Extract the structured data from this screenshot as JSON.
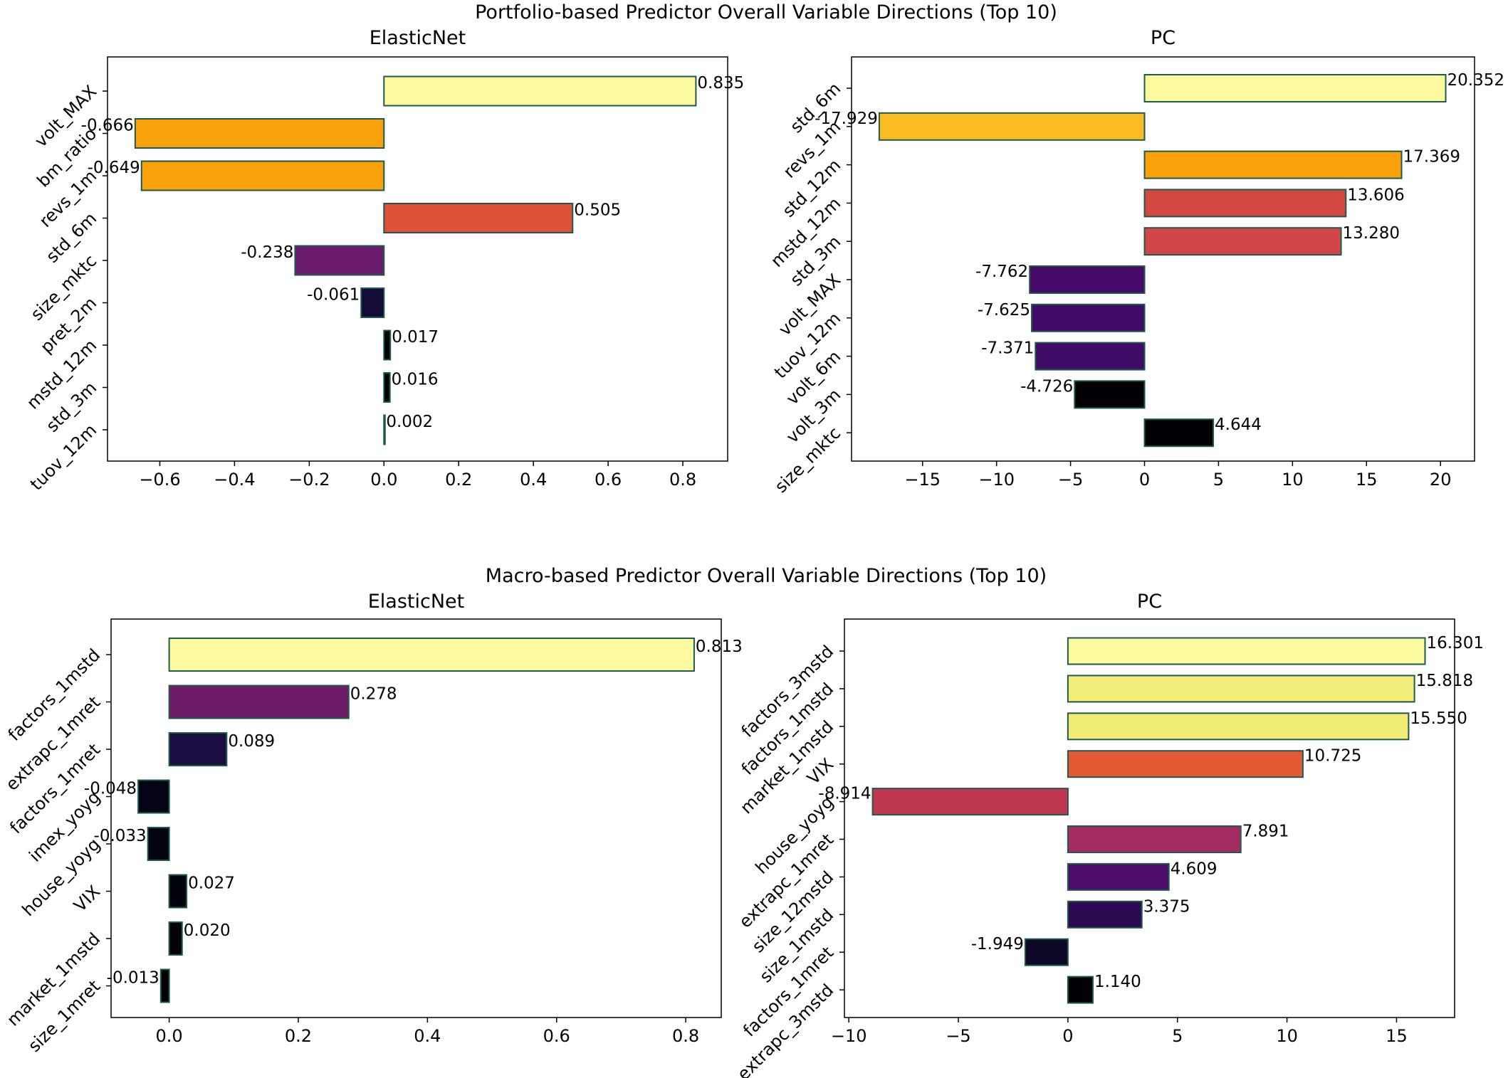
{
  "figure": {
    "suptitles": [
      "Portfolio-based Predictor Overall Variable Directions (Top 10)",
      "Macro-based Predictor Overall Variable Directions (Top 10)"
    ]
  },
  "chart_data": [
    {
      "type": "bar",
      "orientation": "horizontal",
      "group": "Portfolio-based Predictor Overall Variable Directions (Top 10)",
      "title": "ElasticNet",
      "categories": [
        "volt_MAX",
        "bm_ratio",
        "revs_1m",
        "std_6m",
        "size_mktc",
        "pret_2m",
        "mstd_12m",
        "std_3m",
        "tuov_12m"
      ],
      "values": [
        0.835,
        -0.666,
        -0.649,
        0.505,
        -0.238,
        -0.061,
        0.017,
        0.016,
        0.002
      ],
      "value_labels": [
        "0.835",
        "-0.666",
        "-0.649",
        "0.505",
        "-0.238",
        "-0.061",
        "0.017",
        "0.016",
        "0.002"
      ],
      "colors": [
        "#fbfa9e",
        "#f9a10b",
        "#f9a10b",
        "#dd5138",
        "#6c1c6e",
        "#150b38",
        "#010005",
        "#010005",
        "#000004"
      ],
      "xlim": [
        -0.74,
        0.92
      ],
      "xticks": [
        -0.6,
        -0.4,
        -0.2,
        0.0,
        0.2,
        0.4,
        0.6,
        0.8
      ],
      "xtick_labels": [
        "−0.6",
        "−0.4",
        "−0.2",
        "0.0",
        "0.2",
        "0.4",
        "0.6",
        "0.8"
      ]
    },
    {
      "type": "bar",
      "orientation": "horizontal",
      "group": "Portfolio-based Predictor Overall Variable Directions (Top 10)",
      "title": "PC",
      "categories": [
        "std_6m",
        "revs_1m",
        "std_12m",
        "mstd_12m",
        "std_3m",
        "volt_MAX",
        "tuov_12m",
        "volt_6m",
        "volt_3m",
        "size_mktc"
      ],
      "values": [
        20.352,
        -17.929,
        17.369,
        13.606,
        13.28,
        -7.762,
        -7.625,
        -7.371,
        -4.726,
        4.644
      ],
      "value_labels": [
        "20.352",
        "-17.929",
        "17.369",
        "13.606",
        "13.280",
        "-7.762",
        "-7.625",
        "-7.371",
        "-4.726",
        "4.644"
      ],
      "colors": [
        "#fbfa9e",
        "#fbbb22",
        "#f9a10b",
        "#d44842",
        "#d2464a",
        "#460b6a",
        "#420a68",
        "#400a67",
        "#000004",
        "#000004"
      ],
      "xlim": [
        -19.8,
        22.3
      ],
      "xticks": [
        -15,
        -10,
        -5,
        0,
        5,
        10,
        15,
        20
      ],
      "xtick_labels": [
        "−15",
        "−10",
        "−5",
        "0",
        "5",
        "10",
        "15",
        "20"
      ]
    },
    {
      "type": "bar",
      "orientation": "horizontal",
      "group": "Macro-based Predictor Overall Variable Directions (Top 10)",
      "title": "ElasticNet",
      "categories": [
        "factors_1mstd",
        "extrapc_1mret",
        "factors_1mret",
        "imex_yoyg",
        "house_yoyg",
        "VIX",
        "market_1mstd",
        "size_1mret"
      ],
      "values": [
        0.813,
        0.278,
        0.089,
        -0.048,
        -0.033,
        0.027,
        0.02,
        -0.013
      ],
      "value_labels": [
        "0.813",
        "0.278",
        "0.089",
        "-0.048",
        "-0.033",
        "0.027",
        "0.020",
        "-0.013"
      ],
      "colors": [
        "#fbfa9e",
        "#6f1c68",
        "#1b0c41",
        "#050417",
        "#03020f",
        "#02020c",
        "#010108",
        "#000004"
      ],
      "xlim": [
        -0.09,
        0.855
      ],
      "xticks": [
        0.0,
        0.2,
        0.4,
        0.6,
        0.8
      ],
      "xtick_labels": [
        "0.0",
        "0.2",
        "0.4",
        "0.6",
        "0.8"
      ]
    },
    {
      "type": "bar",
      "orientation": "horizontal",
      "group": "Macro-based Predictor Overall Variable Directions (Top 10)",
      "title": "PC",
      "categories": [
        "factors_3mstd",
        "factors_1mstd",
        "market_1mstd",
        "VIX",
        "house_yoyg",
        "extrapc_1mret",
        "size_12mstd",
        "size_1mstd",
        "factors_1mret",
        "extrapc_3mstd"
      ],
      "values": [
        16.301,
        15.818,
        15.55,
        10.725,
        -8.914,
        7.891,
        4.609,
        3.375,
        -1.949,
        1.14
      ],
      "value_labels": [
        "16.301",
        "15.818",
        "15.550",
        "10.725",
        "-8.914",
        "7.891",
        "4.609",
        "3.375",
        "-1.949",
        "1.140"
      ],
      "colors": [
        "#fbfa9e",
        "#f1ed78",
        "#f0eb72",
        "#e35933",
        "#c0384f",
        "#a52c60",
        "#4d0c6b",
        "#2d0a52",
        "#0d0826",
        "#000004"
      ],
      "xlim": [
        -10.2,
        17.65
      ],
      "xticks": [
        -10,
        -5,
        0,
        5,
        10,
        15
      ],
      "xtick_labels": [
        "−10",
        "−5",
        "0",
        "5",
        "10",
        "15"
      ]
    }
  ],
  "colors": {
    "bar_edge": "#1f5a4a",
    "axes": "#000000"
  }
}
